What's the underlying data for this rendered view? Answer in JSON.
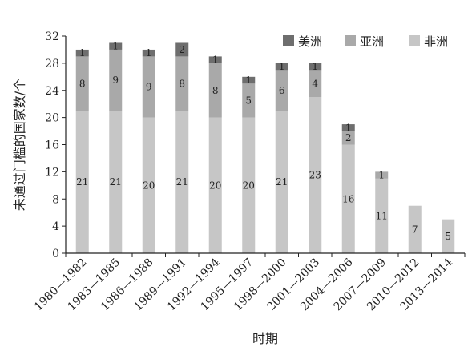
{
  "chart_data": {
    "type": "bar",
    "stacked": true,
    "title": "",
    "xlabel": "时期",
    "ylabel": "未通过门槛的国家数/个",
    "ylim": [
      0,
      32
    ],
    "yticks": [
      0,
      4,
      8,
      12,
      16,
      20,
      24,
      28,
      32
    ],
    "grid": false,
    "legend_position": "top-right",
    "categories": [
      "1980—1982",
      "1983—1985",
      "1986—1988",
      "1989—1991",
      "1992—1994",
      "1995—1997",
      "1998—2000",
      "2001—2003",
      "2004—2006",
      "2007—2009",
      "2010—2012",
      "2013—2014"
    ],
    "series": [
      {
        "name": "非洲",
        "color": "#c6c6c6",
        "values": [
          21,
          21,
          20,
          21,
          20,
          20,
          21,
          23,
          16,
          11,
          7,
          5
        ]
      },
      {
        "name": "亚洲",
        "color": "#a9a9a9",
        "values": [
          8,
          9,
          9,
          8,
          8,
          5,
          6,
          4,
          2,
          1,
          0,
          0
        ]
      },
      {
        "name": "美洲",
        "color": "#6e6e6e",
        "values": [
          1,
          1,
          1,
          2,
          1,
          1,
          1,
          1,
          1,
          0,
          0,
          0
        ]
      }
    ]
  }
}
